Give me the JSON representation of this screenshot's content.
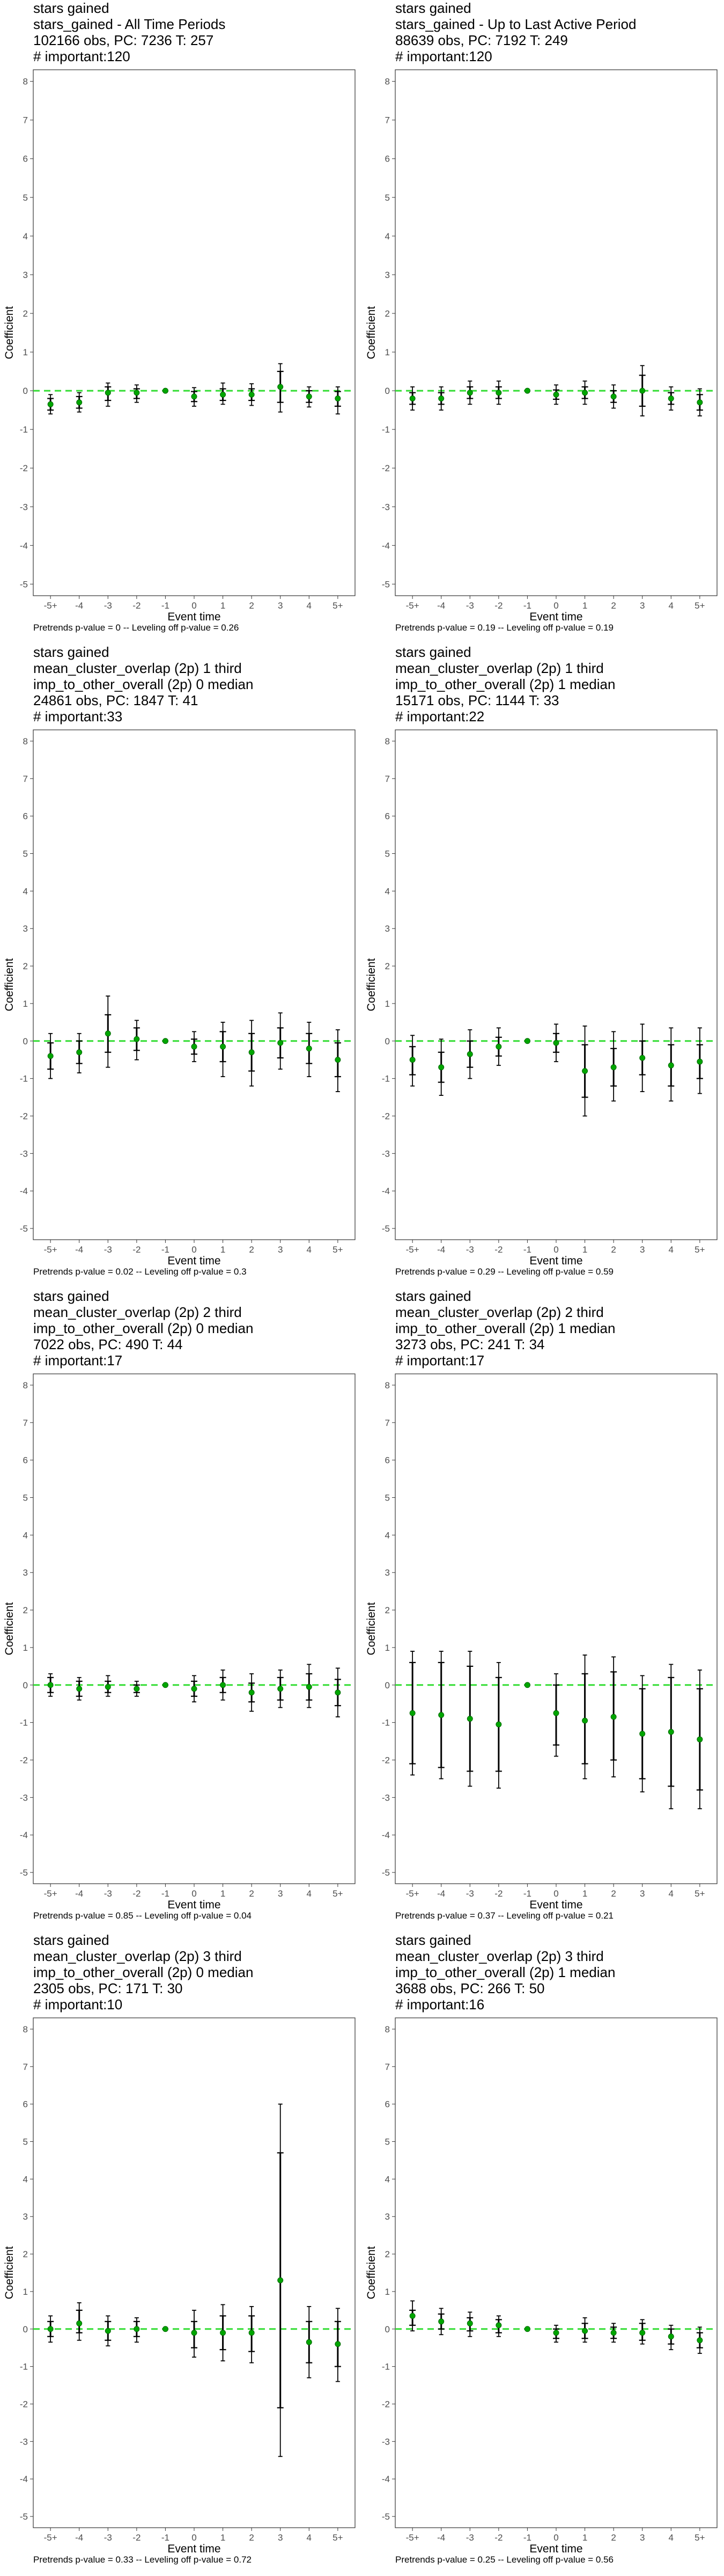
{
  "chart_data": [
    {
      "type": "scatter",
      "title": [
        "stars gained",
        "stars_gained - All Time Periods",
        "102166 obs, PC: 7236 T: 257",
        "# important:120"
      ],
      "caption": "Pretrends p-value = 0 -- Leveling off p-value = 0.26",
      "xlabel": "Event time",
      "ylabel": "Coefficient",
      "categories": [
        "-5+",
        "-4",
        "-3",
        "-2",
        "-1",
        "0",
        "1",
        "2",
        "3",
        "4",
        "5+"
      ],
      "ylim": [
        -5,
        8
      ],
      "values": [
        -0.35,
        -0.3,
        -0.05,
        -0.05,
        0.0,
        -0.15,
        -0.1,
        -0.1,
        0.1,
        -0.15,
        -0.2
      ],
      "ci_inner": [
        [
          -0.5,
          -0.2
        ],
        [
          -0.45,
          -0.15
        ],
        [
          -0.25,
          0.1
        ],
        [
          -0.2,
          0.05
        ],
        [
          0.0,
          0.0
        ],
        [
          -0.28,
          -0.02
        ],
        [
          -0.25,
          0.05
        ],
        [
          -0.25,
          0.05
        ],
        [
          -0.3,
          0.5
        ],
        [
          -0.3,
          0.0
        ],
        [
          -0.4,
          -0.02
        ]
      ],
      "ci_outer": [
        [
          -0.6,
          -0.1
        ],
        [
          -0.55,
          -0.05
        ],
        [
          -0.4,
          0.2
        ],
        [
          -0.3,
          0.15
        ],
        [
          0.0,
          0.0
        ],
        [
          -0.4,
          0.08
        ],
        [
          -0.35,
          0.2
        ],
        [
          -0.38,
          0.18
        ],
        [
          -0.55,
          0.7
        ],
        [
          -0.42,
          0.1
        ],
        [
          -0.6,
          0.1
        ]
      ]
    },
    {
      "type": "scatter",
      "title": [
        "stars gained",
        "stars_gained - Up to Last Active Period",
        "88639 obs, PC: 7192 T: 249",
        "# important:120"
      ],
      "caption": "Pretrends p-value = 0.19 -- Leveling off p-value = 0.19",
      "xlabel": "Event time",
      "ylabel": "Coefficient",
      "categories": [
        "-5+",
        "-4",
        "-3",
        "-2",
        "-1",
        "0",
        "1",
        "2",
        "3",
        "4",
        "5+"
      ],
      "ylim": [
        -5,
        8
      ],
      "values": [
        -0.2,
        -0.2,
        -0.05,
        -0.05,
        0.0,
        -0.1,
        -0.05,
        -0.15,
        0.0,
        -0.2,
        -0.3
      ],
      "ci_inner": [
        [
          -0.35,
          -0.05
        ],
        [
          -0.35,
          -0.05
        ],
        [
          -0.2,
          0.1
        ],
        [
          -0.2,
          0.1
        ],
        [
          0.0,
          0.0
        ],
        [
          -0.22,
          0.02
        ],
        [
          -0.2,
          0.1
        ],
        [
          -0.3,
          0.0
        ],
        [
          -0.4,
          0.4
        ],
        [
          -0.35,
          -0.05
        ],
        [
          -0.5,
          -0.1
        ]
      ],
      "ci_outer": [
        [
          -0.5,
          0.1
        ],
        [
          -0.5,
          0.1
        ],
        [
          -0.35,
          0.25
        ],
        [
          -0.35,
          0.25
        ],
        [
          0.0,
          0.0
        ],
        [
          -0.35,
          0.15
        ],
        [
          -0.35,
          0.25
        ],
        [
          -0.45,
          0.15
        ],
        [
          -0.65,
          0.65
        ],
        [
          -0.5,
          0.1
        ],
        [
          -0.65,
          0.05
        ]
      ]
    },
    {
      "type": "scatter",
      "title": [
        "stars gained",
        "mean_cluster_overlap (2p) 1 third",
        "imp_to_other_overall (2p) 0 median",
        "24861 obs, PC: 1847 T: 41",
        "# important:33"
      ],
      "caption": "Pretrends p-value = 0.02 -- Leveling off p-value = 0.3",
      "xlabel": "Event time",
      "ylabel": "Coefficient",
      "categories": [
        "-5+",
        "-4",
        "-3",
        "-2",
        "-1",
        "0",
        "1",
        "2",
        "3",
        "4",
        "5+"
      ],
      "ylim": [
        -5,
        8
      ],
      "values": [
        -0.4,
        -0.3,
        0.2,
        0.05,
        0.0,
        -0.15,
        -0.15,
        -0.3,
        -0.05,
        -0.2,
        -0.5
      ],
      "ci_inner": [
        [
          -0.75,
          -0.05
        ],
        [
          -0.6,
          0.0
        ],
        [
          -0.3,
          0.7
        ],
        [
          -0.25,
          0.35
        ],
        [
          0.0,
          0.0
        ],
        [
          -0.35,
          0.05
        ],
        [
          -0.55,
          0.25
        ],
        [
          -0.8,
          0.2
        ],
        [
          -0.45,
          0.35
        ],
        [
          -0.6,
          0.2
        ],
        [
          -0.95,
          -0.05
        ]
      ],
      "ci_outer": [
        [
          -1.0,
          0.2
        ],
        [
          -0.85,
          0.2
        ],
        [
          -0.7,
          1.2
        ],
        [
          -0.5,
          0.55
        ],
        [
          0.0,
          0.0
        ],
        [
          -0.55,
          0.25
        ],
        [
          -0.95,
          0.5
        ],
        [
          -1.2,
          0.55
        ],
        [
          -0.75,
          0.75
        ],
        [
          -0.95,
          0.5
        ],
        [
          -1.35,
          0.3
        ]
      ]
    },
    {
      "type": "scatter",
      "title": [
        "stars gained",
        "mean_cluster_overlap (2p) 1 third",
        "imp_to_other_overall (2p) 1 median",
        "15171 obs, PC: 1144 T: 33",
        "# important:22"
      ],
      "caption": "Pretrends p-value = 0.29 -- Leveling off p-value = 0.59",
      "xlabel": "Event time",
      "ylabel": "Coefficient",
      "categories": [
        "-5+",
        "-4",
        "-3",
        "-2",
        "-1",
        "0",
        "1",
        "2",
        "3",
        "4",
        "5+"
      ],
      "ylim": [
        -5,
        8
      ],
      "values": [
        -0.5,
        -0.7,
        -0.35,
        -0.15,
        0.0,
        -0.05,
        -0.8,
        -0.7,
        -0.45,
        -0.65,
        -0.55
      ],
      "ci_inner": [
        [
          -0.9,
          -0.15
        ],
        [
          -1.1,
          -0.3
        ],
        [
          -0.7,
          0.0
        ],
        [
          -0.4,
          0.1
        ],
        [
          0.0,
          0.0
        ],
        [
          -0.3,
          0.2
        ],
        [
          -1.5,
          -0.1
        ],
        [
          -1.2,
          -0.2
        ],
        [
          -0.9,
          0.0
        ],
        [
          -1.2,
          -0.1
        ],
        [
          -1.0,
          -0.1
        ]
      ],
      "ci_outer": [
        [
          -1.2,
          0.15
        ],
        [
          -1.45,
          0.05
        ],
        [
          -1.0,
          0.3
        ],
        [
          -0.65,
          0.35
        ],
        [
          0.0,
          0.0
        ],
        [
          -0.55,
          0.45
        ],
        [
          -2.0,
          0.4
        ],
        [
          -1.6,
          0.25
        ],
        [
          -1.35,
          0.45
        ],
        [
          -1.6,
          0.35
        ],
        [
          -1.4,
          0.35
        ]
      ]
    },
    {
      "type": "scatter",
      "title": [
        "stars gained",
        "mean_cluster_overlap (2p) 2 third",
        "imp_to_other_overall (2p) 0 median",
        "7022 obs, PC: 490 T: 44",
        "# important:17"
      ],
      "caption": "Pretrends p-value = 0.85 -- Leveling off p-value = 0.04",
      "xlabel": "Event time",
      "ylabel": "Coefficient",
      "categories": [
        "-5+",
        "-4",
        "-3",
        "-2",
        "-1",
        "0",
        "1",
        "2",
        "3",
        "4",
        "5+"
      ],
      "ylim": [
        -5,
        8
      ],
      "values": [
        0.0,
        -0.1,
        -0.05,
        -0.1,
        0.0,
        -0.1,
        0.0,
        -0.2,
        -0.1,
        -0.05,
        -0.2
      ],
      "ci_inner": [
        [
          -0.2,
          0.2
        ],
        [
          -0.3,
          0.1
        ],
        [
          -0.2,
          0.1
        ],
        [
          -0.2,
          0.0
        ],
        [
          0.0,
          0.0
        ],
        [
          -0.3,
          0.1
        ],
        [
          -0.2,
          0.2
        ],
        [
          -0.45,
          0.05
        ],
        [
          -0.4,
          0.2
        ],
        [
          -0.4,
          0.3
        ],
        [
          -0.55,
          0.15
        ]
      ],
      "ci_outer": [
        [
          -0.3,
          0.3
        ],
        [
          -0.4,
          0.2
        ],
        [
          -0.3,
          0.25
        ],
        [
          -0.3,
          0.1
        ],
        [
          0.0,
          0.0
        ],
        [
          -0.45,
          0.25
        ],
        [
          -0.4,
          0.4
        ],
        [
          -0.7,
          0.3
        ],
        [
          -0.6,
          0.4
        ],
        [
          -0.6,
          0.55
        ],
        [
          -0.85,
          0.45
        ]
      ]
    },
    {
      "type": "scatter",
      "title": [
        "stars gained",
        "mean_cluster_overlap (2p) 2 third",
        "imp_to_other_overall (2p) 1 median",
        "3273 obs, PC: 241 T: 34",
        "# important:17"
      ],
      "caption": "Pretrends p-value = 0.37 -- Leveling off p-value = 0.21",
      "xlabel": "Event time",
      "ylabel": "Coefficient",
      "categories": [
        "-5+",
        "-4",
        "-3",
        "-2",
        "-1",
        "0",
        "1",
        "2",
        "3",
        "4",
        "5+"
      ],
      "ylim": [
        -5,
        8
      ],
      "values": [
        -0.75,
        -0.8,
        -0.9,
        -1.05,
        0.0,
        -0.75,
        -0.95,
        -0.85,
        -1.3,
        -1.25,
        -1.45
      ],
      "ci_inner": [
        [
          -2.1,
          0.6
        ],
        [
          -2.2,
          0.6
        ],
        [
          -2.3,
          0.5
        ],
        [
          -2.3,
          0.2
        ],
        [
          0.0,
          0.0
        ],
        [
          -1.6,
          0.0
        ],
        [
          -2.1,
          0.3
        ],
        [
          -2.0,
          0.35
        ],
        [
          -2.5,
          -0.1
        ],
        [
          -2.7,
          0.2
        ],
        [
          -2.8,
          -0.1
        ]
      ],
      "ci_outer": [
        [
          -2.4,
          0.9
        ],
        [
          -2.5,
          0.9
        ],
        [
          -2.7,
          0.9
        ],
        [
          -2.75,
          0.6
        ],
        [
          0.0,
          0.0
        ],
        [
          -1.9,
          0.3
        ],
        [
          -2.5,
          0.8
        ],
        [
          -2.45,
          0.75
        ],
        [
          -2.85,
          0.25
        ],
        [
          -3.3,
          0.55
        ],
        [
          -3.3,
          0.4
        ]
      ]
    },
    {
      "type": "scatter",
      "title": [
        "stars gained",
        "mean_cluster_overlap (2p) 3 third",
        "imp_to_other_overall (2p) 0 median",
        "2305 obs, PC: 171 T: 30",
        "# important:10"
      ],
      "caption": "Pretrends p-value = 0.33 -- Leveling off p-value = 0.72",
      "xlabel": "Event time",
      "ylabel": "Coefficient",
      "categories": [
        "-5+",
        "-4",
        "-3",
        "-2",
        "-1",
        "0",
        "1",
        "2",
        "3",
        "4",
        "5+"
      ],
      "ylim": [
        -5,
        8
      ],
      "values": [
        0.0,
        0.15,
        -0.05,
        0.0,
        0.0,
        -0.1,
        -0.1,
        -0.1,
        1.3,
        -0.35,
        -0.4
      ],
      "ci_inner": [
        [
          -0.2,
          0.2
        ],
        [
          -0.1,
          0.5
        ],
        [
          -0.3,
          0.2
        ],
        [
          -0.2,
          0.2
        ],
        [
          0.0,
          0.0
        ],
        [
          -0.5,
          0.2
        ],
        [
          -0.55,
          0.35
        ],
        [
          -0.6,
          0.35
        ],
        [
          -2.1,
          4.7
        ],
        [
          -0.9,
          0.2
        ],
        [
          -1.0,
          0.2
        ]
      ],
      "ci_outer": [
        [
          -0.35,
          0.35
        ],
        [
          -0.3,
          0.7
        ],
        [
          -0.45,
          0.35
        ],
        [
          -0.35,
          0.3
        ],
        [
          0.0,
          0.0
        ],
        [
          -0.75,
          0.5
        ],
        [
          -0.85,
          0.65
        ],
        [
          -0.9,
          0.6
        ],
        [
          -3.4,
          6.0
        ],
        [
          -1.3,
          0.6
        ],
        [
          -1.4,
          0.55
        ]
      ]
    },
    {
      "type": "scatter",
      "title": [
        "stars gained",
        "mean_cluster_overlap (2p) 3 third",
        "imp_to_other_overall (2p) 1 median",
        "3688 obs, PC: 266 T: 50",
        "# important:16"
      ],
      "caption": "Pretrends p-value = 0.25 -- Leveling off p-value = 0.56",
      "xlabel": "Event time",
      "ylabel": "Coefficient",
      "categories": [
        "-5+",
        "-4",
        "-3",
        "-2",
        "-1",
        "0",
        "1",
        "2",
        "3",
        "4",
        "5+"
      ],
      "ylim": [
        -5,
        8
      ],
      "values": [
        0.35,
        0.2,
        0.15,
        0.1,
        0.0,
        -0.1,
        -0.05,
        -0.1,
        -0.1,
        -0.2,
        -0.3
      ],
      "ci_inner": [
        [
          0.1,
          0.5
        ],
        [
          0.0,
          0.4
        ],
        [
          -0.05,
          0.3
        ],
        [
          -0.1,
          0.25
        ],
        [
          0.0,
          0.0
        ],
        [
          -0.25,
          0.0
        ],
        [
          -0.25,
          0.15
        ],
        [
          -0.25,
          0.05
        ],
        [
          -0.3,
          0.15
        ],
        [
          -0.4,
          0.0
        ],
        [
          -0.5,
          -0.1
        ]
      ],
      "ci_outer": [
        [
          -0.05,
          0.75
        ],
        [
          -0.15,
          0.55
        ],
        [
          -0.2,
          0.45
        ],
        [
          -0.2,
          0.35
        ],
        [
          0.0,
          0.0
        ],
        [
          -0.35,
          0.1
        ],
        [
          -0.35,
          0.3
        ],
        [
          -0.35,
          0.15
        ],
        [
          -0.4,
          0.25
        ],
        [
          -0.55,
          0.1
        ],
        [
          -0.65,
          0.05
        ]
      ]
    }
  ],
  "colors": {
    "point": "#00a600",
    "zero_line": "#33dd33",
    "ci": "#000000",
    "panel_border": "#333333",
    "tick_label": "#4d4d4d"
  }
}
